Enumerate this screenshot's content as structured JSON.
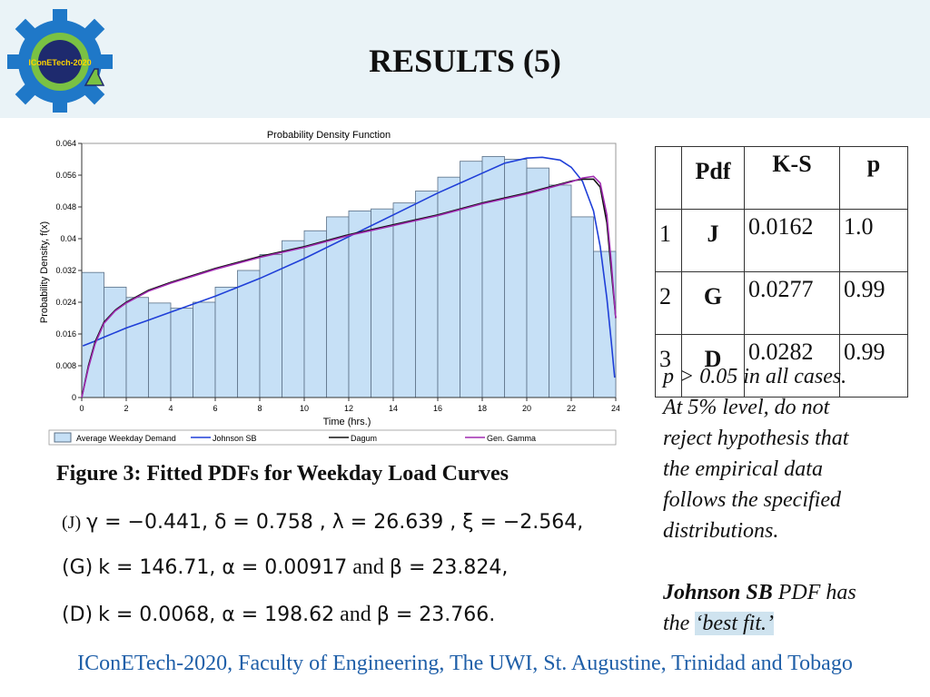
{
  "slide": {
    "title": "RESULTS (5)",
    "logo_text": "IConETech-2020",
    "footer": "IConETech-2020, Faculty of Engineering, The UWI, St. Augustine, Trinidad and Tobago",
    "figure_caption": "Figure 3: Fitted PDFs for Weekday Load Curves"
  },
  "parameters": {
    "J": {
      "label": "(J)",
      "text": "γ = −0.441, δ = 0.758 , λ = 26.639 , ξ = −2.564,"
    },
    "G": {
      "label": "(G)",
      "text": "k = 146.71, α = 0.00917",
      "and": "and",
      "text2": "β = 23.824,"
    },
    "D": {
      "label": "(D)",
      "text": "k = 0.0068, α = 198.62",
      "and": "and",
      "text2": "β = 23.766."
    }
  },
  "table": {
    "headers": [
      "",
      "Pdf",
      "K-S",
      "p"
    ],
    "rows": [
      {
        "n": "1",
        "pdf": "J",
        "ks": "0.0162",
        "p": "1.0"
      },
      {
        "n": "2",
        "pdf": "G",
        "ks": "0.0277",
        "p": "0.99"
      },
      {
        "n": "3",
        "pdf": "D",
        "ks": "0.0282",
        "p": "0.99"
      }
    ]
  },
  "note": {
    "l1": "p > 0.05 in all cases.",
    "l2": "At 5% level, do not",
    "l3": "reject hypothesis that",
    "l4": "the empirical data",
    "l5": "follows the specified",
    "l6": "distributions.",
    "fit_bold": "Johnson SB",
    "fit_rest": " PDF has",
    "fit_the": "the ",
    "fit_quote": "‘best fit.’"
  },
  "chart_data": {
    "type": "bar",
    "title": "Probability Density Function",
    "xlabel": "Time (hrs.)",
    "ylabel": "Probability Density, f(x)",
    "xlim": [
      0,
      24
    ],
    "ylim": [
      0,
      0.064
    ],
    "xticks": [
      "0",
      "2",
      "4",
      "6",
      "8",
      "10",
      "12",
      "14",
      "16",
      "18",
      "20",
      "22",
      "24"
    ],
    "yticks": [
      "0",
      "0.008",
      "0.016",
      "0.024",
      "0.032",
      "0.04",
      "0.048",
      "0.056",
      "0.064"
    ],
    "bins": [
      0,
      1,
      2,
      3,
      4,
      5,
      6,
      7,
      8,
      9,
      10,
      11,
      12,
      13,
      14,
      15,
      16,
      17,
      18,
      19,
      20,
      21,
      22,
      23
    ],
    "values": [
      0.0315,
      0.0278,
      0.0252,
      0.0238,
      0.0225,
      0.024,
      0.0278,
      0.032,
      0.036,
      0.0395,
      0.042,
      0.0455,
      0.047,
      0.0475,
      0.049,
      0.052,
      0.0555,
      0.0595,
      0.0607,
      0.06,
      0.0578,
      0.0535,
      0.0455,
      0.0368
    ],
    "series": [
      {
        "name": "Johnson SB",
        "color": "#1f3fd8",
        "x": [
          0.05,
          0.5,
          1,
          2,
          3,
          4,
          6,
          8,
          10,
          12,
          14,
          16,
          18,
          19,
          20,
          20.7,
          21.5,
          22,
          22.5,
          23,
          23.3,
          23.6,
          23.8,
          23.95
        ],
        "y": [
          0.013,
          0.014,
          0.0152,
          0.0175,
          0.0195,
          0.0215,
          0.0255,
          0.03,
          0.035,
          0.0405,
          0.046,
          0.0515,
          0.0565,
          0.059,
          0.0603,
          0.0605,
          0.0598,
          0.058,
          0.0545,
          0.047,
          0.038,
          0.025,
          0.014,
          0.005
        ]
      },
      {
        "name": "Dagum",
        "color": "#111111",
        "x": [
          0,
          0.3,
          0.6,
          1,
          1.5,
          2,
          3,
          4,
          6,
          8,
          10,
          12,
          14,
          16,
          18,
          20,
          21,
          22,
          22.5,
          23,
          23.3,
          23.6,
          23.8,
          24
        ],
        "y": [
          0,
          0.008,
          0.014,
          0.019,
          0.022,
          0.024,
          0.027,
          0.029,
          0.0325,
          0.0355,
          0.038,
          0.041,
          0.0435,
          0.046,
          0.049,
          0.0515,
          0.053,
          0.0545,
          0.055,
          0.055,
          0.053,
          0.044,
          0.032,
          0.02
        ]
      },
      {
        "name": "Gen. Gamma",
        "color": "#a02bb0",
        "x": [
          0,
          0.3,
          0.6,
          1,
          1.5,
          2,
          3,
          4,
          6,
          8,
          10,
          12,
          14,
          16,
          18,
          20,
          21,
          22,
          22.5,
          23,
          23.3,
          23.6,
          23.8,
          24
        ],
        "y": [
          0,
          0.0075,
          0.0135,
          0.0187,
          0.0218,
          0.0238,
          0.0268,
          0.0288,
          0.0323,
          0.0353,
          0.0378,
          0.0408,
          0.0433,
          0.0458,
          0.0488,
          0.0513,
          0.0528,
          0.0543,
          0.0553,
          0.0557,
          0.054,
          0.046,
          0.034,
          0.02
        ]
      }
    ],
    "legend": [
      "Average Weekday Demand",
      "Johnson SB",
      "Dagum",
      "Gen. Gamma"
    ],
    "legend_position": "bottom",
    "bar_color": "#c6e0f6",
    "bar_edge": "#5a6f86"
  }
}
